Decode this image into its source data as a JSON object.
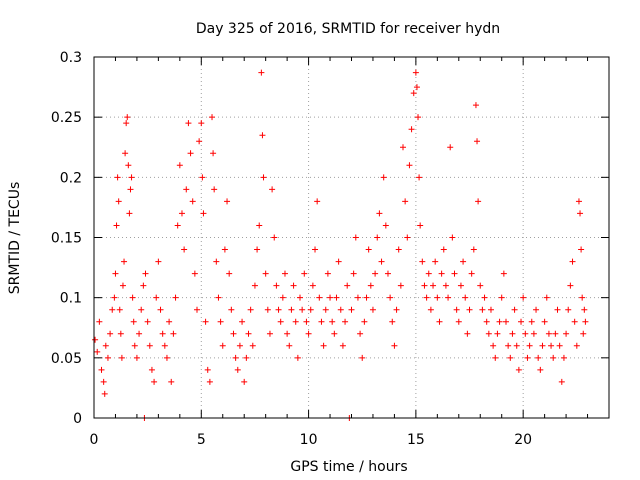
{
  "chart_data": {
    "type": "scatter",
    "title": "Day 325 of 2016, SRMTID for receiver hydn",
    "xlabel": "GPS time / hours",
    "ylabel": "SRMTID / TECUs",
    "xlim": [
      0,
      24
    ],
    "ylim": [
      0,
      0.3
    ],
    "xticks": [
      0,
      5,
      10,
      15,
      20
    ],
    "xtick_labels": [
      "0",
      "5",
      "10",
      "15",
      "20"
    ],
    "yticks": [
      0,
      0.05,
      0.1,
      0.15,
      0.2,
      0.25,
      0.3
    ],
    "ytick_labels": [
      "0",
      "0.05",
      "0.1",
      "0.15",
      "0.2",
      "0.25",
      "0.3"
    ],
    "grid": true,
    "marker": "+",
    "color": "#ff0000",
    "series": [
      {
        "name": "SRMTID",
        "points": [
          [
            0.05,
            0.065
          ],
          [
            0.15,
            0.055
          ],
          [
            0.25,
            0.08
          ],
          [
            0.35,
            0.04
          ],
          [
            0.45,
            0.03
          ],
          [
            0.5,
            0.02
          ],
          [
            0.55,
            0.06
          ],
          [
            0.65,
            0.05
          ],
          [
            0.75,
            0.07
          ],
          [
            0.85,
            0.09
          ],
          [
            0.95,
            0.1
          ],
          [
            1.0,
            0.12
          ],
          [
            1.05,
            0.16
          ],
          [
            1.1,
            0.2
          ],
          [
            1.15,
            0.18
          ],
          [
            1.2,
            0.09
          ],
          [
            1.25,
            0.07
          ],
          [
            1.3,
            0.05
          ],
          [
            1.35,
            0.11
          ],
          [
            1.4,
            0.13
          ],
          [
            1.45,
            0.22
          ],
          [
            1.5,
            0.245
          ],
          [
            1.55,
            0.25
          ],
          [
            1.6,
            0.21
          ],
          [
            1.65,
            0.17
          ],
          [
            1.7,
            0.19
          ],
          [
            1.75,
            0.2
          ],
          [
            1.8,
            0.1
          ],
          [
            1.85,
            0.08
          ],
          [
            1.9,
            0.06
          ],
          [
            2.0,
            0.05
          ],
          [
            2.1,
            0.07
          ],
          [
            2.2,
            0.09
          ],
          [
            2.3,
            0.11
          ],
          [
            2.35,
            0.0
          ],
          [
            2.4,
            0.12
          ],
          [
            2.5,
            0.08
          ],
          [
            2.6,
            0.06
          ],
          [
            2.7,
            0.04
          ],
          [
            2.8,
            0.03
          ],
          [
            2.9,
            0.1
          ],
          [
            3.0,
            0.13
          ],
          [
            3.1,
            0.09
          ],
          [
            3.2,
            0.07
          ],
          [
            3.3,
            0.06
          ],
          [
            3.4,
            0.05
          ],
          [
            3.5,
            0.08
          ],
          [
            3.6,
            0.03
          ],
          [
            3.7,
            0.07
          ],
          [
            3.8,
            0.1
          ],
          [
            3.9,
            0.16
          ],
          [
            4.0,
            0.21
          ],
          [
            4.1,
            0.17
          ],
          [
            4.2,
            0.14
          ],
          [
            4.3,
            0.19
          ],
          [
            4.4,
            0.245
          ],
          [
            4.5,
            0.22
          ],
          [
            4.6,
            0.18
          ],
          [
            4.7,
            0.12
          ],
          [
            4.8,
            0.09
          ],
          [
            4.9,
            0.23
          ],
          [
            5.0,
            0.245
          ],
          [
            5.05,
            0.2
          ],
          [
            5.1,
            0.17
          ],
          [
            5.2,
            0.08
          ],
          [
            5.3,
            0.04
          ],
          [
            5.4,
            0.03
          ],
          [
            5.5,
            0.25
          ],
          [
            5.55,
            0.22
          ],
          [
            5.6,
            0.19
          ],
          [
            5.7,
            0.13
          ],
          [
            5.8,
            0.1
          ],
          [
            5.9,
            0.08
          ],
          [
            6.0,
            0.06
          ],
          [
            6.1,
            0.14
          ],
          [
            6.2,
            0.18
          ],
          [
            6.3,
            0.12
          ],
          [
            6.4,
            0.09
          ],
          [
            6.5,
            0.07
          ],
          [
            6.6,
            0.05
          ],
          [
            6.7,
            0.04
          ],
          [
            6.8,
            0.06
          ],
          [
            6.9,
            0.08
          ],
          [
            7.0,
            0.03
          ],
          [
            7.1,
            0.05
          ],
          [
            7.2,
            0.07
          ],
          [
            7.3,
            0.09
          ],
          [
            7.4,
            0.06
          ],
          [
            7.5,
            0.11
          ],
          [
            7.6,
            0.14
          ],
          [
            7.7,
            0.16
          ],
          [
            7.8,
            0.287
          ],
          [
            7.85,
            0.235
          ],
          [
            7.9,
            0.2
          ],
          [
            8.0,
            0.12
          ],
          [
            8.1,
            0.09
          ],
          [
            8.2,
            0.07
          ],
          [
            8.3,
            0.19
          ],
          [
            8.4,
            0.15
          ],
          [
            8.5,
            0.11
          ],
          [
            8.6,
            0.09
          ],
          [
            8.7,
            0.08
          ],
          [
            8.8,
            0.1
          ],
          [
            8.9,
            0.12
          ],
          [
            9.0,
            0.07
          ],
          [
            9.1,
            0.06
          ],
          [
            9.2,
            0.09
          ],
          [
            9.3,
            0.11
          ],
          [
            9.4,
            0.08
          ],
          [
            9.5,
            0.05
          ],
          [
            9.6,
            0.1
          ],
          [
            9.7,
            0.09
          ],
          [
            9.8,
            0.12
          ],
          [
            9.9,
            0.08
          ],
          [
            10.0,
            0.07
          ],
          [
            10.1,
            0.09
          ],
          [
            10.2,
            0.11
          ],
          [
            10.3,
            0.14
          ],
          [
            10.4,
            0.18
          ],
          [
            10.5,
            0.1
          ],
          [
            10.6,
            0.08
          ],
          [
            10.7,
            0.06
          ],
          [
            10.8,
            0.09
          ],
          [
            10.9,
            0.12
          ],
          [
            11.0,
            0.1
          ],
          [
            11.1,
            0.08
          ],
          [
            11.2,
            0.07
          ],
          [
            11.3,
            0.1
          ],
          [
            11.4,
            0.13
          ],
          [
            11.5,
            0.09
          ],
          [
            11.6,
            0.06
          ],
          [
            11.7,
            0.08
          ],
          [
            11.8,
            0.11
          ],
          [
            11.9,
            0.0
          ],
          [
            12.0,
            0.09
          ],
          [
            12.1,
            0.12
          ],
          [
            12.2,
            0.15
          ],
          [
            12.3,
            0.1
          ],
          [
            12.4,
            0.07
          ],
          [
            12.5,
            0.05
          ],
          [
            12.6,
            0.08
          ],
          [
            12.7,
            0.1
          ],
          [
            12.8,
            0.14
          ],
          [
            12.9,
            0.11
          ],
          [
            13.0,
            0.09
          ],
          [
            13.1,
            0.12
          ],
          [
            13.2,
            0.15
          ],
          [
            13.3,
            0.17
          ],
          [
            13.4,
            0.13
          ],
          [
            13.5,
            0.2
          ],
          [
            13.6,
            0.16
          ],
          [
            13.7,
            0.12
          ],
          [
            13.8,
            0.1
          ],
          [
            13.9,
            0.08
          ],
          [
            14.0,
            0.06
          ],
          [
            14.1,
            0.09
          ],
          [
            14.2,
            0.14
          ],
          [
            14.3,
            0.11
          ],
          [
            14.4,
            0.225
          ],
          [
            14.5,
            0.18
          ],
          [
            14.6,
            0.15
          ],
          [
            14.7,
            0.21
          ],
          [
            14.8,
            0.24
          ],
          [
            14.9,
            0.27
          ],
          [
            15.0,
            0.287
          ],
          [
            15.05,
            0.275
          ],
          [
            15.1,
            0.25
          ],
          [
            15.15,
            0.2
          ],
          [
            15.2,
            0.16
          ],
          [
            15.3,
            0.13
          ],
          [
            15.4,
            0.11
          ],
          [
            15.5,
            0.1
          ],
          [
            15.6,
            0.12
          ],
          [
            15.7,
            0.09
          ],
          [
            15.8,
            0.11
          ],
          [
            15.9,
            0.13
          ],
          [
            16.0,
            0.1
          ],
          [
            16.1,
            0.08
          ],
          [
            16.2,
            0.12
          ],
          [
            16.3,
            0.14
          ],
          [
            16.4,
            0.11
          ],
          [
            16.5,
            0.1
          ],
          [
            16.6,
            0.225
          ],
          [
            16.7,
            0.15
          ],
          [
            16.8,
            0.12
          ],
          [
            16.9,
            0.09
          ],
          [
            17.0,
            0.08
          ],
          [
            17.1,
            0.11
          ],
          [
            17.2,
            0.13
          ],
          [
            17.3,
            0.1
          ],
          [
            17.4,
            0.07
          ],
          [
            17.5,
            0.09
          ],
          [
            17.6,
            0.12
          ],
          [
            17.7,
            0.14
          ],
          [
            17.8,
            0.26
          ],
          [
            17.85,
            0.23
          ],
          [
            17.9,
            0.18
          ],
          [
            18.0,
            0.11
          ],
          [
            18.1,
            0.09
          ],
          [
            18.2,
            0.1
          ],
          [
            18.3,
            0.08
          ],
          [
            18.4,
            0.07
          ],
          [
            18.5,
            0.09
          ],
          [
            18.6,
            0.06
          ],
          [
            18.7,
            0.05
          ],
          [
            18.8,
            0.07
          ],
          [
            18.9,
            0.08
          ],
          [
            19.0,
            0.1
          ],
          [
            19.1,
            0.12
          ],
          [
            19.2,
            0.08
          ],
          [
            19.3,
            0.06
          ],
          [
            19.4,
            0.05
          ],
          [
            19.5,
            0.07
          ],
          [
            19.6,
            0.09
          ],
          [
            19.7,
            0.06
          ],
          [
            19.8,
            0.04
          ],
          [
            19.9,
            0.08
          ],
          [
            20.0,
            0.1
          ],
          [
            20.1,
            0.07
          ],
          [
            20.2,
            0.05
          ],
          [
            20.3,
            0.06
          ],
          [
            20.4,
            0.08
          ],
          [
            20.5,
            0.07
          ],
          [
            20.6,
            0.09
          ],
          [
            20.7,
            0.05
          ],
          [
            20.8,
            0.04
          ],
          [
            20.9,
            0.06
          ],
          [
            21.0,
            0.08
          ],
          [
            21.1,
            0.1
          ],
          [
            21.2,
            0.07
          ],
          [
            21.3,
            0.06
          ],
          [
            21.4,
            0.05
          ],
          [
            21.5,
            0.07
          ],
          [
            21.6,
            0.09
          ],
          [
            21.7,
            0.06
          ],
          [
            21.8,
            0.03
          ],
          [
            21.9,
            0.05
          ],
          [
            22.0,
            0.07
          ],
          [
            22.1,
            0.09
          ],
          [
            22.2,
            0.11
          ],
          [
            22.3,
            0.13
          ],
          [
            22.4,
            0.08
          ],
          [
            22.5,
            0.06
          ],
          [
            22.6,
            0.18
          ],
          [
            22.65,
            0.17
          ],
          [
            22.7,
            0.14
          ],
          [
            22.75,
            0.1
          ],
          [
            22.8,
            0.07
          ],
          [
            22.85,
            0.09
          ],
          [
            22.9,
            0.08
          ]
        ]
      }
    ]
  }
}
